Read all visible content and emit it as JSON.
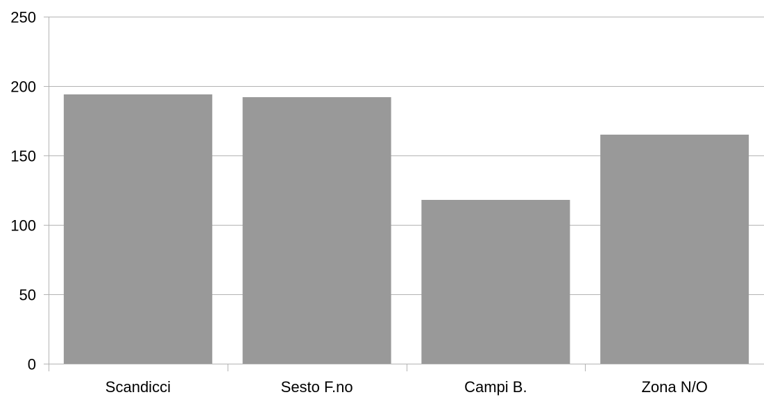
{
  "chart_data": {
    "type": "bar",
    "title": "",
    "xlabel": "",
    "ylabel": "",
    "categories": [
      "Scandicci",
      "Sesto F.no",
      "Campi B.",
      "Zona N/O"
    ],
    "values": [
      194,
      192,
      118,
      165
    ],
    "ylim": [
      0,
      250
    ],
    "yticks": [
      0,
      50,
      100,
      150,
      200,
      250
    ],
    "grid": true,
    "legend": "none"
  },
  "colors": {
    "bar": "#999999",
    "grid": "#b3b3b3",
    "axis": "#b3b3b3",
    "text": "#000000"
  }
}
